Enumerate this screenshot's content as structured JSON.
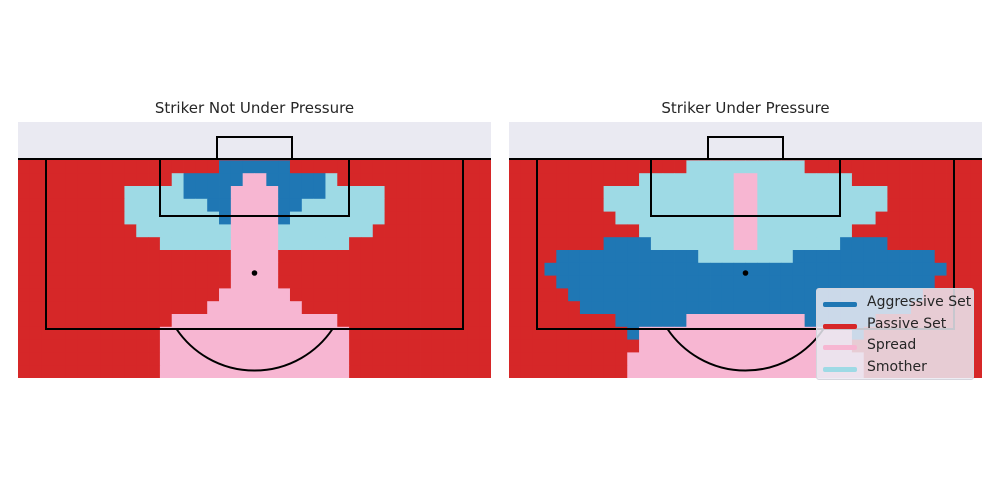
{
  "chart_data": {
    "type": "heatmap",
    "grid": {
      "cols": 40,
      "rows": 20,
      "rows_above_pitch": 3
    },
    "strategies": [
      "Aggressive Set",
      "Passive Set",
      "Spread",
      "Smother"
    ],
    "colors": {
      "Aggressive Set": "#1f77b4",
      "Passive Set": "#d62728",
      "Spread": "#f7b6d2",
      "Smother": "#9edae5",
      "off_pitch": "#eaeaf2",
      "lines": "#000000"
    },
    "panels": [
      {
        "title": "Striker Not Under Pressure",
        "regions": [
          {
            "strategy": "Smother",
            "col_range": [
              7,
              33
            ],
            "row_range": [
              4,
              9
            ],
            "half_widths": [
              7,
              11,
              11,
              11,
              10,
              8
            ]
          },
          {
            "strategy": "Aggressive Set",
            "col_range": [
              13,
              27
            ],
            "row_range": [
              3,
              7
            ],
            "half_widths": [
              3,
              6,
              6,
              4,
              3
            ]
          },
          {
            "strategy": "Spread",
            "cells_from": "center_funnel",
            "rows": [
              4,
              19
            ],
            "half_widths": [
              1,
              2,
              2,
              2,
              2,
              2,
              2,
              2,
              2,
              3,
              4,
              7,
              8,
              8,
              8,
              8
            ]
          }
        ],
        "default": "Passive Set"
      },
      {
        "title": "Striker Under Pressure",
        "regions": [
          {
            "strategy": "Aggressive Set",
            "col_range": [
              3,
              38
            ],
            "row_range": [
              8,
              16
            ],
            "half_widths": [
              6,
              12,
              16,
              17,
              16,
              15,
              14,
              11,
              10
            ]
          },
          {
            "strategy": "Smother",
            "col_range": [
              7,
              33
            ],
            "row_range": [
              3,
              10
            ],
            "half_widths": [
              5,
              9,
              12,
              12,
              11,
              9,
              8,
              4
            ]
          },
          {
            "strategy": "Spread",
            "cells_from": "center_funnel",
            "rows": [
              4,
              19
            ],
            "half_widths": [
              1,
              1,
              1,
              1,
              1,
              1,
              0,
              0,
              0,
              0,
              0,
              5,
              9,
              9,
              10,
              10
            ]
          }
        ],
        "default": "Passive Set"
      }
    ],
    "legend": {
      "placement": "bottom-right",
      "items": [
        "Aggressive Set",
        "Passive Set",
        "Spread",
        "Smother"
      ]
    }
  }
}
